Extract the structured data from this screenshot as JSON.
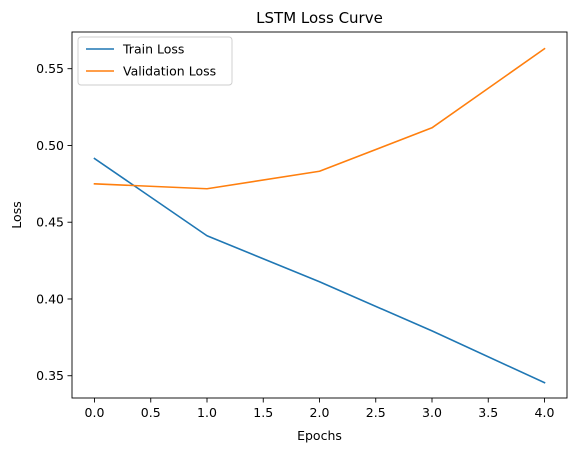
{
  "chart_data": {
    "type": "line",
    "title": "LSTM Loss Curve",
    "xlabel": "Epochs",
    "ylabel": "Loss",
    "x": [
      0,
      1,
      2,
      3,
      4
    ],
    "xlim": [
      -0.2,
      4.2
    ],
    "ylim": [
      0.3355,
      0.5739
    ],
    "xticks": [
      0.0,
      0.5,
      1.0,
      1.5,
      2.0,
      2.5,
      3.0,
      3.5,
      4.0
    ],
    "xtick_labels": [
      "0.0",
      "0.5",
      "1.0",
      "1.5",
      "2.0",
      "2.5",
      "3.0",
      "3.5",
      "4.0"
    ],
    "yticks": [
      0.35,
      0.4,
      0.45,
      0.5,
      0.55
    ],
    "ytick_labels": [
      "0.35",
      "0.40",
      "0.45",
      "0.50",
      "0.55"
    ],
    "grid": false,
    "legend_position": "top-left",
    "series": [
      {
        "name": "Train Loss",
        "color": "#1f77b4",
        "values": [
          0.4915,
          0.4412,
          0.4112,
          0.3792,
          0.3455
        ]
      },
      {
        "name": "Validation Loss",
        "color": "#ff7f0e",
        "values": [
          0.475,
          0.4718,
          0.4832,
          0.5115,
          0.563
        ]
      }
    ]
  }
}
